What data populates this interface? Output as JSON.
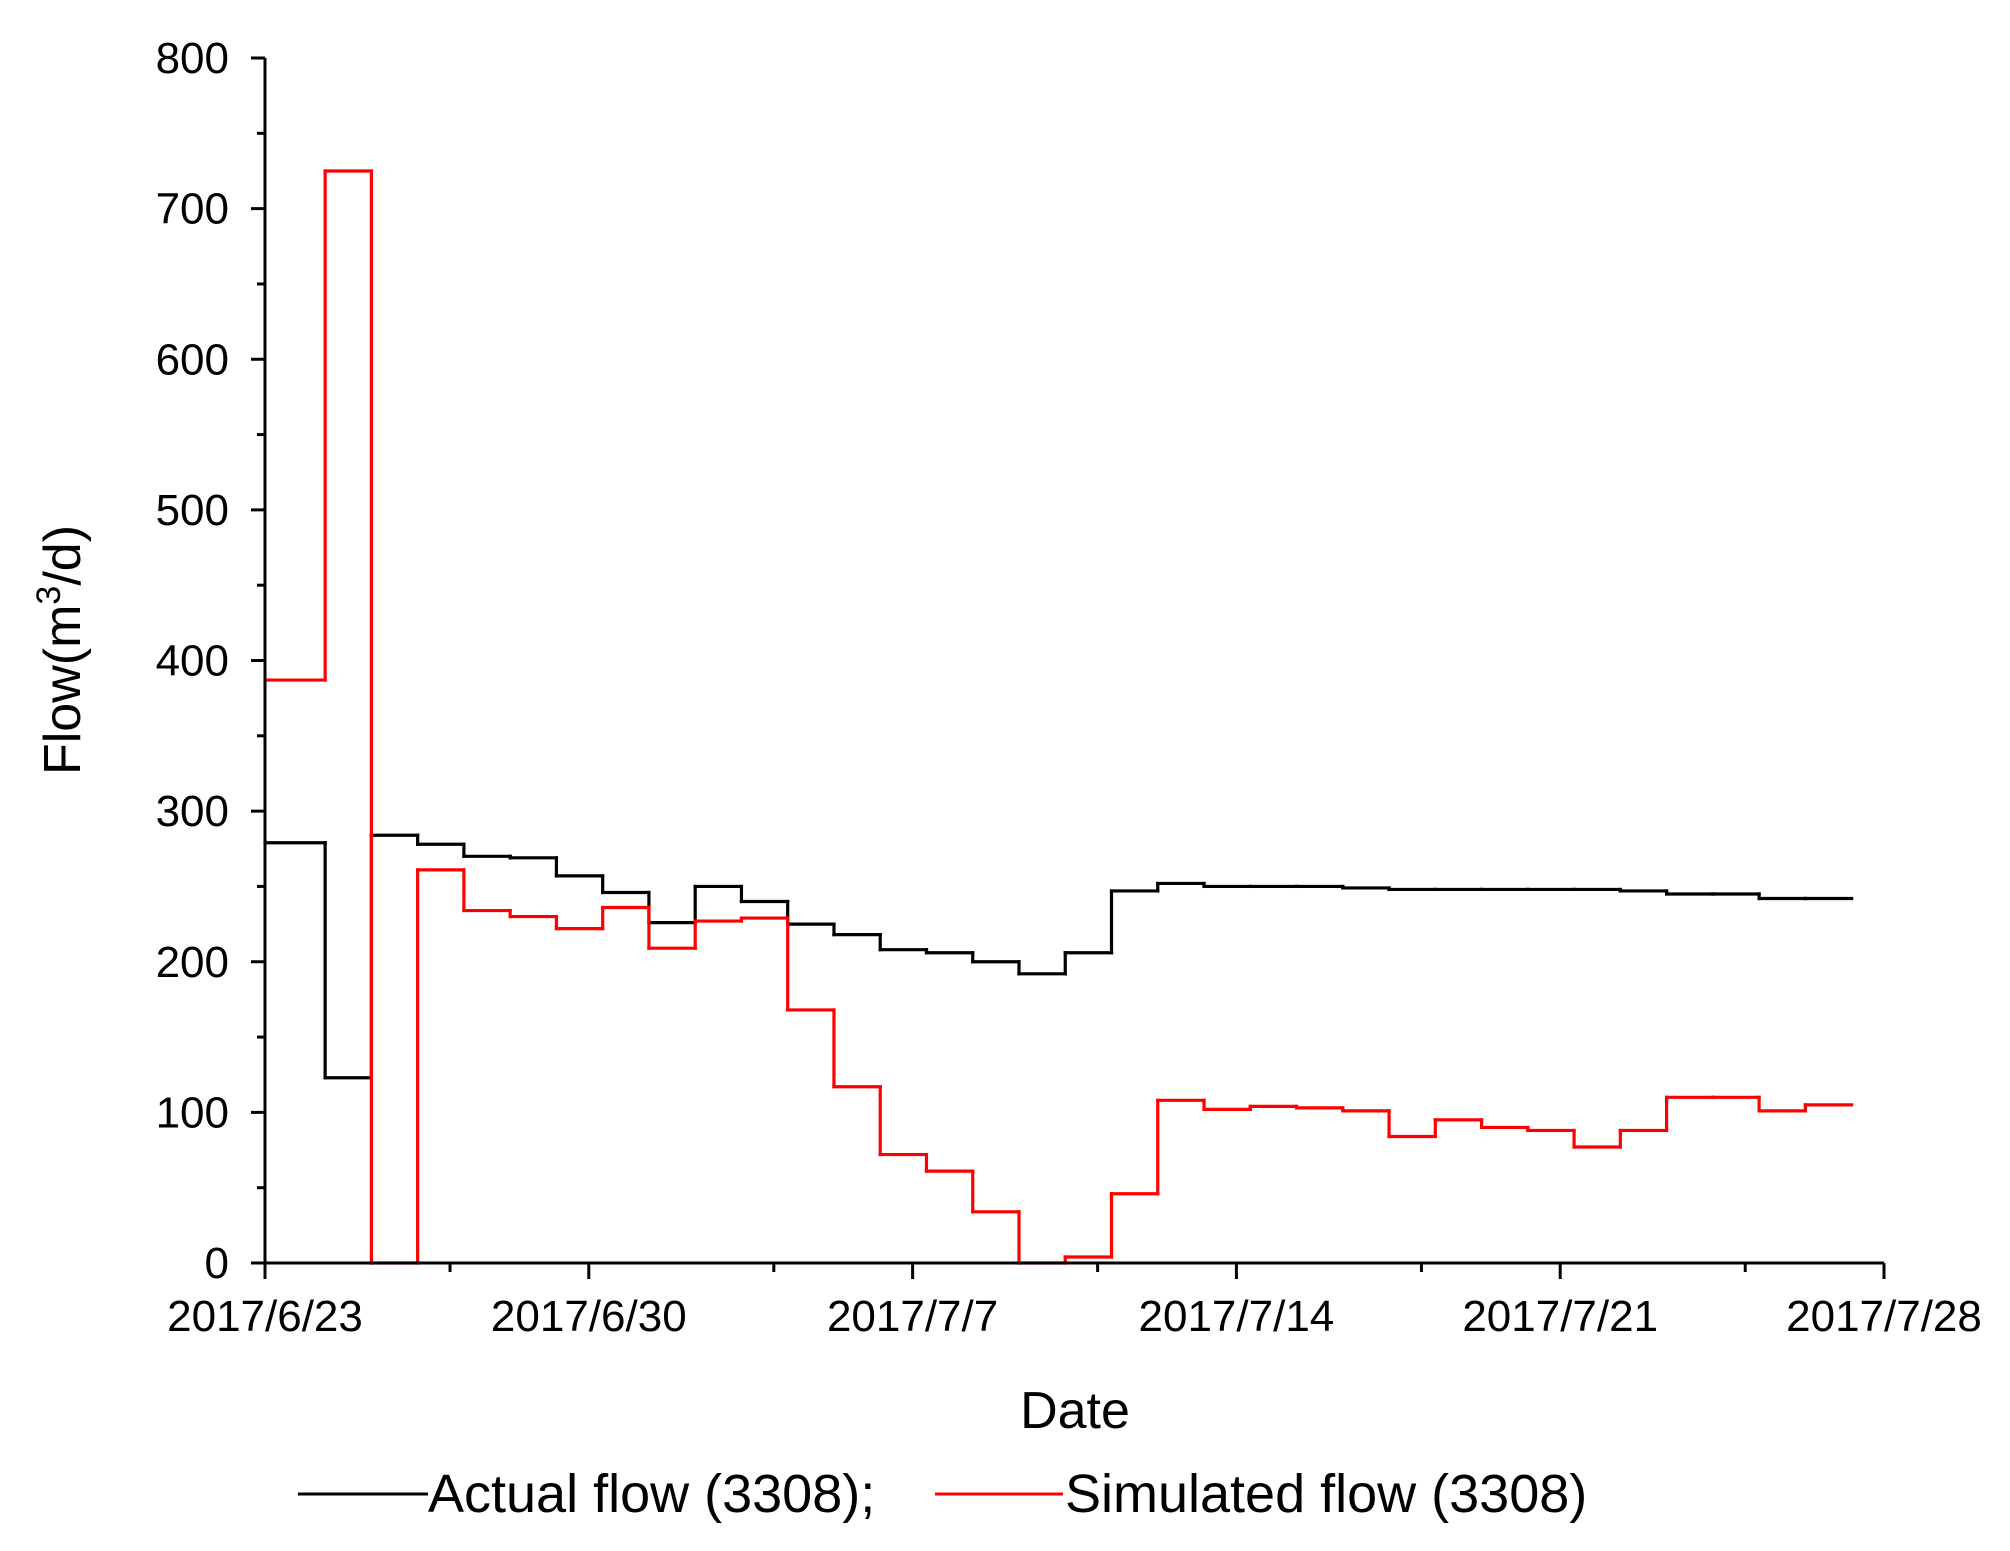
{
  "chart_data": {
    "type": "line",
    "step": true,
    "title": "",
    "xlabel": "Date",
    "ylabel": "Flow(m³/d)",
    "ylabel_parts": {
      "pre": "Flow(m",
      "sup": "3",
      "post": "/d)"
    },
    "x_unit": "days since 2017/6/23",
    "xlim": [
      0,
      35
    ],
    "ylim": [
      0,
      800
    ],
    "x_ticks": [
      {
        "x": 0,
        "label": "2017/6/23"
      },
      {
        "x": 7,
        "label": "2017/6/30"
      },
      {
        "x": 14,
        "label": "2017/7/7"
      },
      {
        "x": 21,
        "label": "2017/7/14"
      },
      {
        "x": 28,
        "label": "2017/7/21"
      },
      {
        "x": 35,
        "label": "2017/7/28"
      }
    ],
    "x_minor_ticks": [
      4,
      11,
      18,
      25,
      32
    ],
    "y_ticks": [
      0,
      100,
      200,
      300,
      400,
      500,
      600,
      700,
      800
    ],
    "y_tick_labels": [
      "0",
      "100",
      "200",
      "300",
      "400",
      "500",
      "600",
      "700",
      "800"
    ],
    "legend": {
      "position": "bottom",
      "separator": ";"
    },
    "series": [
      {
        "name": "Actual flow (3308)",
        "color": "#000000",
        "x": [
          0,
          1.3,
          2.3,
          3.3,
          4.3,
          5.3,
          6.3,
          7.3,
          8.3,
          9.3,
          10.3,
          11.3,
          12.3,
          13.3,
          14.3,
          15.3,
          16.3,
          17.3,
          18.3,
          19.3,
          20.3,
          21.3,
          22.3,
          23.3,
          24.3,
          25.3,
          26.3,
          27.3,
          28.3,
          29.3,
          30.3,
          31.3,
          32.3,
          33.3
        ],
        "values": [
          279,
          123,
          284,
          278,
          270,
          269,
          257,
          246,
          226,
          250,
          240,
          225,
          218,
          208,
          206,
          200,
          192,
          206,
          247,
          252,
          250,
          250,
          250,
          249,
          248,
          248,
          248,
          248,
          248,
          247,
          245,
          245,
          242,
          242
        ]
      },
      {
        "name": "Simulated flow (3308)",
        "color": "#ff0000",
        "x": [
          0,
          1.3,
          2.3,
          3.3,
          4.3,
          5.3,
          6.3,
          7.3,
          8.3,
          9.3,
          10.3,
          11.3,
          12.3,
          13.3,
          14.3,
          15.3,
          16.3,
          17.3,
          18.3,
          19.3,
          20.3,
          21.3,
          22.3,
          23.3,
          24.3,
          25.3,
          26.3,
          27.3,
          28.3,
          29.3,
          30.3,
          31.3,
          32.3,
          33.3
        ],
        "values": [
          387,
          725,
          0,
          261,
          234,
          230,
          222,
          236,
          209,
          227,
          229,
          168,
          117,
          72,
          61,
          34,
          0,
          4,
          46,
          108,
          102,
          104,
          103,
          101,
          84,
          95,
          90,
          88,
          77,
          88,
          110,
          110,
          101,
          105
        ]
      }
    ]
  }
}
